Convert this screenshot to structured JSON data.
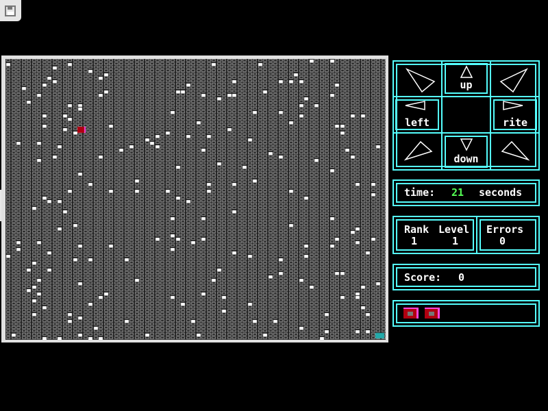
{
  "toolbar": {
    "save_icon": "floppy-disk-icon",
    "side_tab_icon": "chevron-right-icon"
  },
  "controls": {
    "up": "up",
    "down": "down",
    "left": "left",
    "rite": "rite"
  },
  "time": {
    "label": "time:",
    "value": "21",
    "unit": "seconds"
  },
  "stats": {
    "rank_label": "Rank",
    "level_label": "Level",
    "rank": "1",
    "level": "1",
    "errors_label": "Errors",
    "errors": "0"
  },
  "score": {
    "label": "Score:",
    "value": "0"
  },
  "lives": {
    "count": 2
  },
  "colors": {
    "accent": "#55ffff",
    "time_value": "#55ff55",
    "player": "#b00010",
    "goal": "#22aaaa",
    "cell": "#9a9a9a"
  }
}
